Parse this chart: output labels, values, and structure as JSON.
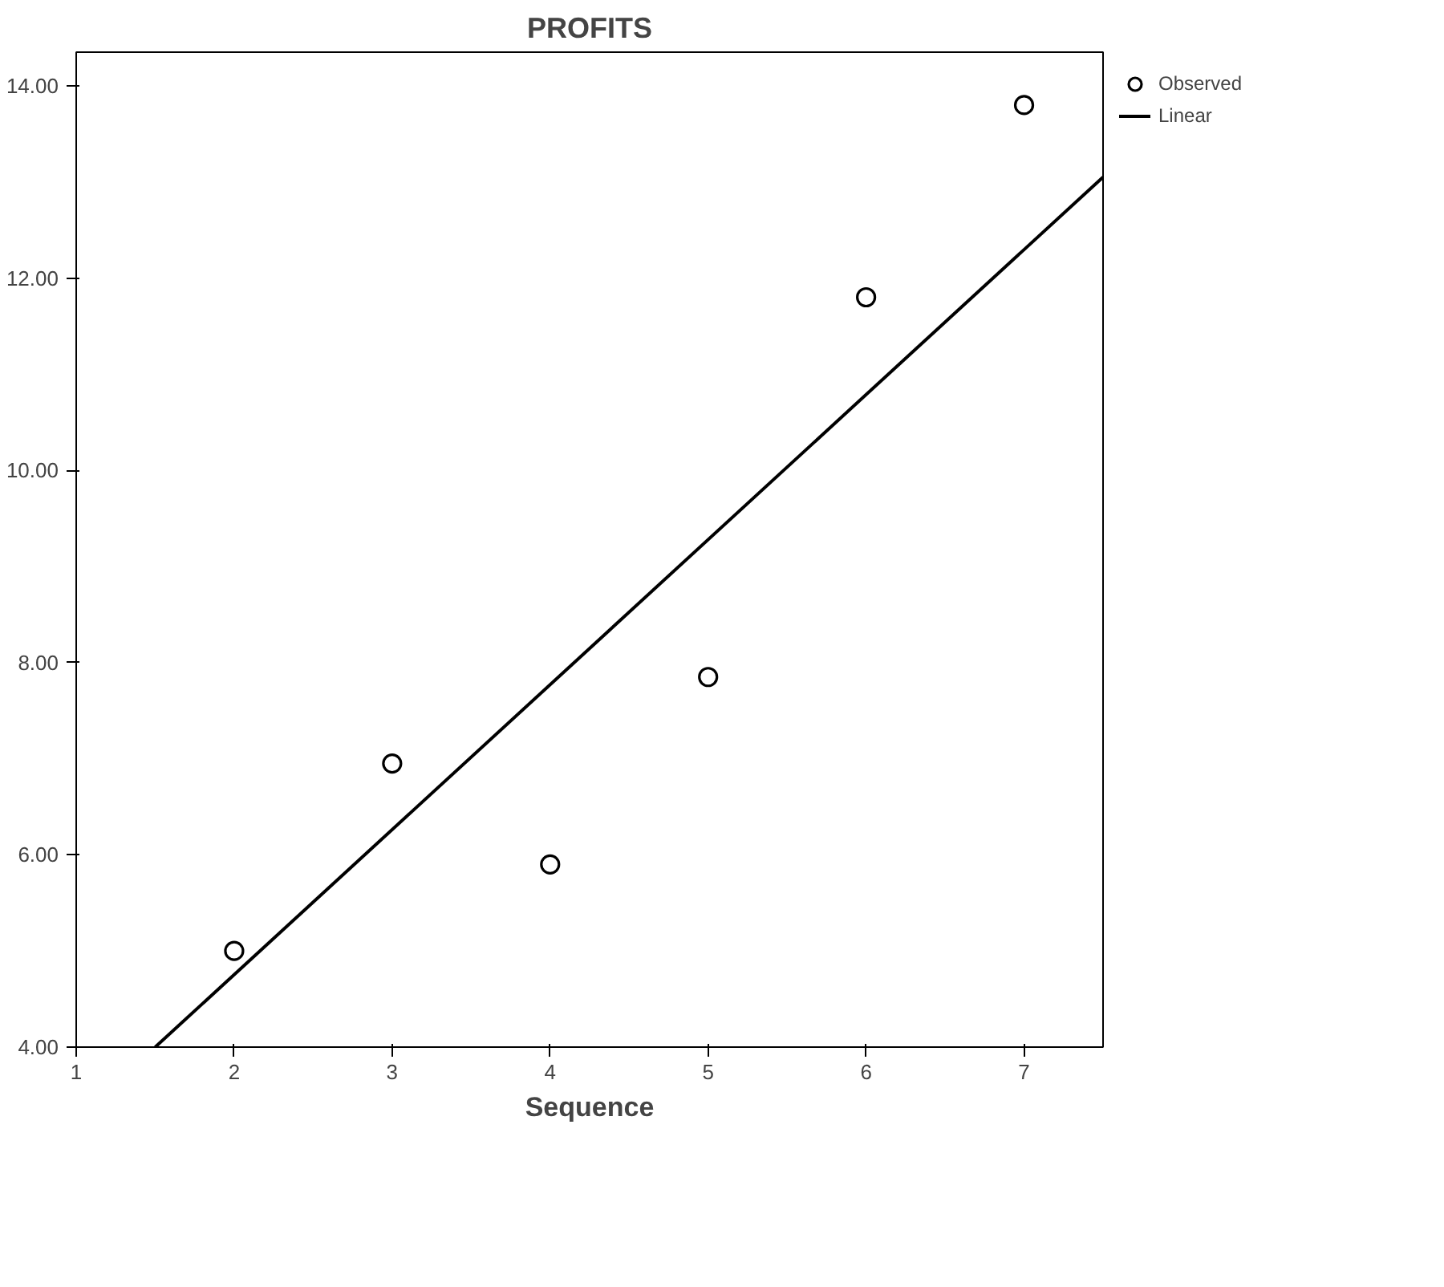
{
  "chart_data": {
    "type": "scatter",
    "title": "PROFITS",
    "xlabel": "Sequence",
    "xlim": [
      1,
      7.5
    ],
    "xticks": [
      1,
      2,
      3,
      4,
      5,
      6,
      7
    ],
    "ylim": [
      4,
      14.35
    ],
    "yticks": [
      {
        "value": 4,
        "label": "4.00"
      },
      {
        "value": 6,
        "label": "6.00"
      },
      {
        "value": 8,
        "label": "8.00"
      },
      {
        "value": 10,
        "label": "10.00"
      },
      {
        "value": 12,
        "label": "12.00"
      },
      {
        "value": 14,
        "label": "14.00"
      }
    ],
    "grid": false,
    "legend": "top right",
    "series": [
      {
        "name": "Observed",
        "marker": "circle",
        "color": "#000000",
        "x": [
          2,
          3,
          4,
          5,
          6,
          7
        ],
        "values": [
          5.0,
          6.95,
          5.9,
          7.85,
          11.8,
          13.8
        ]
      },
      {
        "name": "Linear",
        "type": "line",
        "line_style": "solid",
        "color": "#000000",
        "x": [
          1.5,
          7.5
        ],
        "values": [
          4.0,
          13.05
        ]
      }
    ]
  }
}
